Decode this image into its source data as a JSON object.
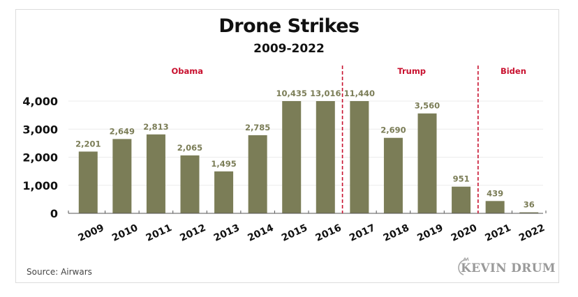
{
  "chart_data": {
    "type": "bar",
    "title": "Drone Strikes",
    "subtitle": "2009-2022",
    "xlabel": "",
    "ylabel": "",
    "categories": [
      "2009",
      "2010",
      "2011",
      "2012",
      "2013",
      "2014",
      "2015",
      "2016",
      "2017",
      "2018",
      "2019",
      "2020",
      "2021",
      "2022"
    ],
    "values": [
      2201,
      2649,
      2813,
      2065,
      1495,
      2785,
      10435,
      13016,
      11440,
      2690,
      3560,
      951,
      439,
      36
    ],
    "value_labels": [
      "2,201",
      "2,649",
      "2,813",
      "2,065",
      "1,495",
      "2,785",
      "10,435",
      "13,016",
      "11,440",
      "2,690",
      "3,560",
      "951",
      "439",
      "36"
    ],
    "ylim": [
      0,
      4000
    ],
    "bars_clipped_at": 4000,
    "yticks": [
      0,
      1000,
      2000,
      3000,
      4000
    ],
    "ytick_labels": [
      "0",
      "1,000",
      "2,000",
      "3,000",
      "4,000"
    ],
    "grid": true,
    "bar_color": "#7b7d57",
    "eras": [
      {
        "name": "Obama",
        "start": "2009",
        "end": "2016"
      },
      {
        "name": "Trump",
        "start": "2017",
        "end": "2020"
      },
      {
        "name": "Biden",
        "start": "2021",
        "end": "2022"
      }
    ],
    "era_divider_color": "#c8102e",
    "era_label_color": "#c8102e",
    "legend": "none"
  },
  "footer": {
    "source": "Source: Airwars",
    "logo_text": "KEVIN DRUM"
  }
}
